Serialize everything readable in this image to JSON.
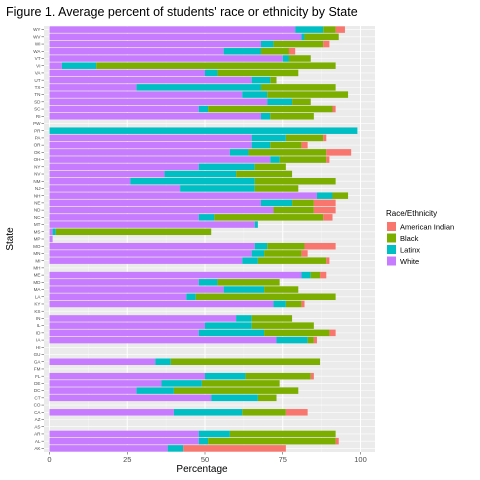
{
  "chart_data": {
    "type": "bar",
    "orientation": "horizontal",
    "stacked": true,
    "title": "Figure 1. Average percent of students' race or ethnicity by State",
    "xlabel": "Percentage",
    "ylabel": "State",
    "xlim": [
      0,
      100
    ],
    "x_ticks": [
      "0",
      "25",
      "50",
      "75",
      "100"
    ],
    "grid": true,
    "legend": {
      "title": "Race/Ethnicity",
      "placement": "right",
      "items": [
        "American Indian",
        "Black",
        "Latinx",
        "White"
      ]
    },
    "colors": {
      "American Indian": "#F8766D",
      "Black": "#7CAE00",
      "Latinx": "#00BFC4",
      "White": "#C77CFF",
      "panel": "#EBEBEB",
      "gridline": "#FFFFFF"
    },
    "stack_order_from_left": [
      "White",
      "Latinx",
      "Black",
      "American Indian"
    ],
    "categories": [
      "AK",
      "AL",
      "AR",
      "AS",
      "AZ",
      "CA",
      "CO",
      "CT",
      "DC",
      "DE",
      "FL",
      "FM",
      "GA",
      "GU",
      "HI",
      "IA",
      "ID",
      "IL",
      "IN",
      "KS",
      "KY",
      "LA",
      "MA",
      "MD",
      "ME",
      "MH",
      "MI",
      "MN",
      "MO",
      "MP",
      "MS",
      "MT",
      "NC",
      "ND",
      "NE",
      "NH",
      "NJ",
      "NM",
      "NV",
      "NY",
      "OH",
      "OK",
      "OR",
      "PA",
      "PR",
      "PW",
      "RI",
      "SC",
      "SD",
      "TN",
      "TX",
      "UT",
      "VA",
      "VI",
      "VT",
      "WA",
      "WI",
      "WV",
      "WY"
    ],
    "series": [
      {
        "name": "White",
        "values": [
          38,
          48,
          48,
          0,
          0,
          40,
          0,
          52,
          28,
          36,
          50,
          0,
          34,
          0,
          0,
          73,
          48,
          50,
          60,
          0,
          72,
          44,
          56,
          48,
          81,
          0,
          62,
          65,
          66,
          1,
          1,
          66,
          48,
          72,
          68,
          86,
          42,
          26,
          37,
          48,
          71,
          58,
          65,
          65,
          0,
          0,
          68,
          48,
          70,
          62,
          28,
          65,
          50,
          4,
          75,
          56,
          68,
          81,
          79
        ]
      },
      {
        "name": "Latinx",
        "values": [
          5,
          3,
          10,
          0,
          0,
          22,
          0,
          15,
          12,
          13,
          13,
          0,
          5,
          0,
          0,
          10,
          21,
          15,
          5,
          0,
          4,
          3,
          13,
          6,
          3,
          0,
          5,
          4,
          4,
          0,
          1,
          1,
          5,
          0,
          10,
          5,
          24,
          40,
          23,
          18,
          3,
          6,
          6,
          11,
          99,
          0,
          3,
          3,
          8,
          8,
          40,
          6,
          4,
          11,
          2,
          12,
          4,
          1,
          9
        ]
      },
      {
        "name": "Black",
        "values": [
          0,
          41,
          34,
          0,
          0,
          14,
          0,
          6,
          40,
          25,
          21,
          0,
          48,
          0,
          0,
          2,
          21,
          20,
          13,
          0,
          5,
          45,
          11,
          20,
          3,
          0,
          22,
          12,
          12,
          0,
          50,
          0,
          35,
          13,
          7,
          5,
          14,
          26,
          18,
          10,
          15,
          25,
          10,
          12,
          0,
          0,
          14,
          40,
          6,
          26,
          24,
          2,
          26,
          77,
          7,
          9,
          16,
          11,
          4
        ]
      },
      {
        "name": "American Indian",
        "values": [
          33,
          1,
          0,
          0,
          0,
          7,
          0,
          0,
          0,
          0,
          1,
          0,
          0,
          0,
          0,
          1,
          2,
          0,
          0,
          0,
          1,
          0,
          0,
          0,
          2,
          0,
          1,
          2,
          10,
          0,
          0,
          0,
          3,
          7,
          7,
          0,
          0,
          0,
          0,
          0,
          1,
          8,
          2,
          1,
          0,
          0,
          0,
          1,
          0,
          0,
          0,
          0,
          0,
          0,
          0,
          2,
          2,
          0,
          3
        ]
      }
    ]
  }
}
